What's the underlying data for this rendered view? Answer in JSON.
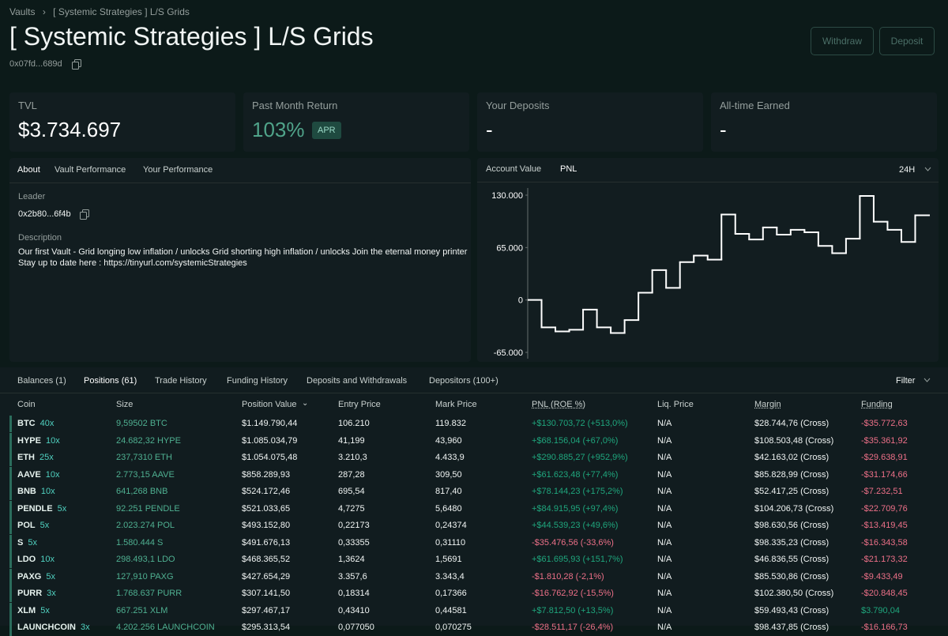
{
  "breadcrumb": [
    "Vaults",
    "[ Systemic Strategies ] L/S Grids"
  ],
  "header": {
    "title": "[ Systemic Strategies ] L/S Grids",
    "address": "0x07fd...689d",
    "buttons": [
      "Withdraw",
      "Deposit"
    ]
  },
  "stats": [
    {
      "label": "TVL",
      "value": "$3.734.697"
    },
    {
      "label": "Past Month Return",
      "value": "103%",
      "badge": "APR"
    },
    {
      "label": "Your Deposits",
      "value": "-"
    },
    {
      "label": "All-time Earned",
      "value": "-"
    }
  ],
  "about": {
    "tabs": [
      "About",
      "Vault Performance",
      "Your Performance"
    ],
    "active_tab": 0,
    "leader_label": "Leader",
    "leader": "0x2b80...6f4b",
    "description_label": "Description",
    "description": "Our first Vault - Grid longing low inflation / unlocks Grid shorting high inflation / unlocks Join the eternal money printer Stay up to date here : https://tinyurl.com/systemicStrategies"
  },
  "chart_panel": {
    "tabs": [
      "Account Value",
      "PNL"
    ],
    "active_tab": 1,
    "range": "24H"
  },
  "chart_data": {
    "type": "step-line",
    "color": "#ffffff",
    "values": [
      0,
      -34000,
      -39000,
      -37000,
      -12000,
      -34000,
      -41000,
      -25000,
      9000,
      37000,
      15000,
      47000,
      55000,
      50000,
      106000,
      82000,
      75000,
      90000,
      81000,
      87000,
      84000,
      67000,
      58000,
      76000,
      129000,
      97000,
      87000,
      72000,
      105000
    ],
    "ylim": [
      -65000,
      130000
    ],
    "yticks": [
      {
        "value": 130000,
        "label": "130.000"
      },
      {
        "value": 65000,
        "label": "65.000"
      },
      0,
      {
        "value": -65000,
        "label": "-65.000"
      }
    ]
  },
  "table": {
    "tabs": [
      "Balances (1)",
      "Positions (61)",
      "Trade History",
      "Funding History",
      "Deposits and Withdrawals",
      "Depositors (100+)"
    ],
    "active_tab": 1,
    "filter": "Filter",
    "columns": [
      "Coin",
      "Size",
      "Position Value",
      "Entry Price",
      "Mark Price",
      "PNL (ROE %)",
      "Liq. Price",
      "Margin",
      "Funding"
    ],
    "rows": [
      [
        "BTC",
        "40x",
        "9,59502 BTC",
        "$1.149.790,44",
        "106.210",
        "119.832",
        "+$130.703,72 (+513,0%)",
        "N/A",
        "$28.744,76 (Cross)",
        "-$35.772,63"
      ],
      [
        "HYPE",
        "10x",
        "24.682,32 HYPE",
        "$1.085.034,79",
        "41,199",
        "43,960",
        "+$68.156,04 (+67,0%)",
        "N/A",
        "$108.503,48 (Cross)",
        "-$35.361,92"
      ],
      [
        "ETH",
        "25x",
        "237,7310 ETH",
        "$1.054.075,48",
        "3.210,3",
        "4.433,9",
        "+$290.885,27 (+952,9%)",
        "N/A",
        "$42.163,02 (Cross)",
        "-$29.638,91"
      ],
      [
        "AAVE",
        "10x",
        "2.773,15 AAVE",
        "$858.289,93",
        "287,28",
        "309,50",
        "+$61.623,48 (+77,4%)",
        "N/A",
        "$85.828,99 (Cross)",
        "-$31.174,66"
      ],
      [
        "BNB",
        "10x",
        "641,268 BNB",
        "$524.172,46",
        "695,54",
        "817,40",
        "+$78.144,23 (+175,2%)",
        "N/A",
        "$52.417,25 (Cross)",
        "-$7.232,51"
      ],
      [
        "PENDLE",
        "5x",
        "92.251 PENDLE",
        "$521.033,65",
        "4,7275",
        "5,6480",
        "+$84.915,95 (+97,4%)",
        "N/A",
        "$104.206,73 (Cross)",
        "-$22.709,76"
      ],
      [
        "POL",
        "5x",
        "2.023.274 POL",
        "$493.152,80",
        "0,22173",
        "0,24374",
        "+$44.539,23 (+49,6%)",
        "N/A",
        "$98.630,56 (Cross)",
        "-$13.419,45"
      ],
      [
        "S",
        "5x",
        "1.580.444 S",
        "$491.676,13",
        "0,33355",
        "0,31110",
        "-$35.476,56 (-33,6%)",
        "N/A",
        "$98.335,23 (Cross)",
        "-$16.343,58"
      ],
      [
        "LDO",
        "10x",
        "298.493,1 LDO",
        "$468.365,52",
        "1,3624",
        "1,5691",
        "+$61.695,93 (+151,7%)",
        "N/A",
        "$46.836,55 (Cross)",
        "-$21.173,32"
      ],
      [
        "PAXG",
        "5x",
        "127,910 PAXG",
        "$427.654,29",
        "3.357,6",
        "3.343,4",
        "-$1.810,28 (-2,1%)",
        "N/A",
        "$85.530,86 (Cross)",
        "-$9.433,49"
      ],
      [
        "PURR",
        "3x",
        "1.768.637 PURR",
        "$307.141,50",
        "0,18314",
        "0,17366",
        "-$16.762,92 (-15,5%)",
        "N/A",
        "$102.380,50 (Cross)",
        "-$20.848,45"
      ],
      [
        "XLM",
        "5x",
        "667.251 XLM",
        "$297.467,17",
        "0,43410",
        "0,44581",
        "+$7.812,50 (+13,5%)",
        "N/A",
        "$59.493,43 (Cross)",
        "$3.790,04"
      ],
      [
        "LAUNCHCOIN",
        "3x",
        "4.202.256 LAUNCHCOIN",
        "$295.313,54",
        "0,077050",
        "0,070275",
        "-$28.511,17 (-26,4%)",
        "N/A",
        "$98.437,85 (Cross)",
        "-$16.166,73"
      ]
    ]
  }
}
